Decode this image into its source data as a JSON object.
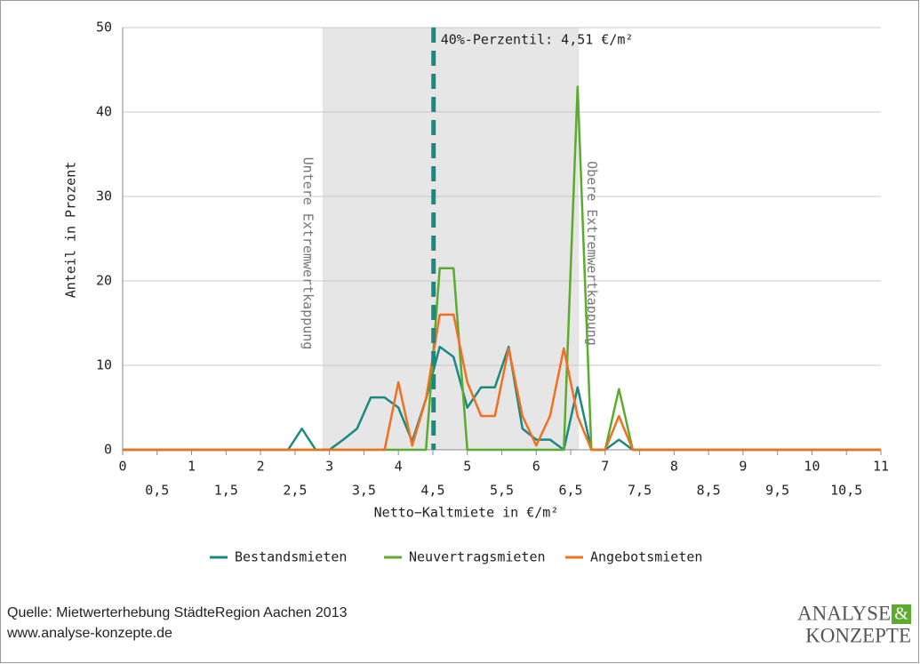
{
  "chart_data": {
    "type": "line",
    "x_label": "Netto−Kaltmiete in €/m²",
    "y_label": "Anteil in Prozent",
    "xlim": [
      0,
      11
    ],
    "ylim": [
      0,
      50
    ],
    "xticks": [
      0,
      1,
      2,
      3,
      4,
      5,
      6,
      7,
      8,
      9,
      10,
      11
    ],
    "xticks_half": [
      {
        "value": 0.5,
        "label": "0,5"
      },
      {
        "value": 1.5,
        "label": "1,5"
      },
      {
        "value": 2.5,
        "label": "2,5"
      },
      {
        "value": 3.5,
        "label": "3,5"
      },
      {
        "value": 4.5,
        "label": "4,5"
      },
      {
        "value": 5.5,
        "label": "5,5"
      },
      {
        "value": 6.5,
        "label": "6,5"
      },
      {
        "value": 7.5,
        "label": "7,5"
      },
      {
        "value": 8.5,
        "label": "8,5"
      },
      {
        "value": 9.5,
        "label": "9,5"
      },
      {
        "value": 10.5,
        "label": "10,5"
      }
    ],
    "yticks": [
      0,
      10,
      20,
      30,
      40,
      50
    ],
    "grid": true,
    "shaded_range": [
      2.9,
      6.62
    ],
    "lower_cap_label": "Untere Extremwertkappung",
    "upper_cap_label": "Obere Extremwertkappung",
    "percentile_line": 4.51,
    "percentile_color": "#1a8a80",
    "percentile_label": "40%-Perzentil: 4,51 €/m²",
    "x": [
      0,
      0.2,
      0.4,
      0.6,
      0.8,
      1,
      1.2,
      1.4,
      1.6,
      1.8,
      2,
      2.2,
      2.4,
      2.6,
      2.8,
      3,
      3.2,
      3.4,
      3.6,
      3.8,
      4,
      4.2,
      4.4,
      4.6,
      4.8,
      5,
      5.2,
      5.4,
      5.6,
      5.8,
      6,
      6.2,
      6.4,
      6.6,
      6.8,
      7,
      7.2,
      7.4,
      7.6,
      7.8,
      8,
      8.2,
      8.4,
      8.6,
      8.8,
      9,
      9.2,
      9.4,
      9.6,
      9.8,
      10,
      10.2,
      10.4,
      10.6,
      10.8,
      11
    ],
    "series": [
      {
        "name": "Bestandsmieten",
        "color": "#1a8a80",
        "values": [
          0,
          0,
          0,
          0,
          0,
          0,
          0,
          0,
          0,
          0,
          0,
          0,
          0,
          2.5,
          0,
          0,
          1.2,
          2.5,
          6.2,
          6.2,
          5,
          1,
          6,
          12.2,
          11,
          5,
          7.4,
          7.4,
          12.2,
          2.5,
          1.2,
          1.2,
          0,
          7.4,
          0,
          0,
          1.2,
          0,
          0,
          0,
          0,
          0,
          0,
          0,
          0,
          0,
          0,
          0,
          0,
          0,
          0,
          0,
          0,
          0,
          0,
          0
        ]
      },
      {
        "name": "Neuvertragsmieten",
        "color": "#5aab2e",
        "values": [
          0,
          0,
          0,
          0,
          0,
          0,
          0,
          0,
          0,
          0,
          0,
          0,
          0,
          0,
          0,
          0,
          0,
          0,
          0,
          0,
          0,
          0,
          0,
          21.5,
          21.5,
          0,
          0,
          0,
          0,
          0,
          0,
          0,
          0,
          43,
          0,
          0,
          7.2,
          0,
          0,
          0,
          0,
          0,
          0,
          0,
          0,
          0,
          0,
          0,
          0,
          0,
          0,
          0,
          0,
          0,
          0,
          0
        ]
      },
      {
        "name": "Angebotsmieten",
        "color": "#f07020",
        "values": [
          0,
          0,
          0,
          0,
          0,
          0,
          0,
          0,
          0,
          0,
          0,
          0,
          0,
          0,
          0,
          0,
          0,
          0,
          0,
          0,
          8,
          0.5,
          6,
          16,
          16,
          8,
          4,
          4,
          12,
          4,
          0.5,
          4,
          12,
          4,
          0,
          0,
          4,
          0,
          0,
          0,
          0,
          0,
          0,
          0,
          0,
          0,
          0,
          0,
          0,
          0,
          0,
          0,
          0,
          0,
          0,
          0
        ]
      }
    ]
  },
  "source": {
    "line1": "Quelle: Mietwerterhebung StädteRegion Aachen 2013",
    "line2": "www.analyse-konzepte.de"
  },
  "logo": {
    "word1": "ANALYSE",
    "amp": "&",
    "word2": "KONZEPTE"
  }
}
